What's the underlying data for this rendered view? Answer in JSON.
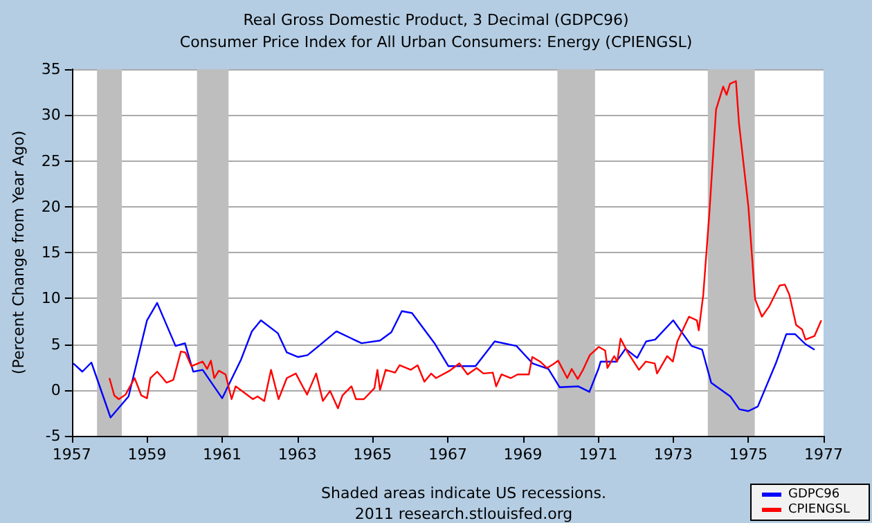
{
  "chart_data": {
    "type": "line",
    "title": "Real Gross Domestic Product, 3 Decimal (GDPC96)",
    "subtitle": "Consumer Price Index for All Urban Consumers: Energy (CPIENGSL)",
    "ylabel": "(Percent Change from Year Ago)",
    "annotations": [
      "Shaded areas indicate US recessions.",
      "2011 research.stlouisfed.org"
    ],
    "series": [
      {
        "name": "GDPC96",
        "color": "#0000ff",
        "x": [
          1957.04,
          1957.28,
          1957.52,
          1958.03,
          1958.51,
          1959.0,
          1959.27,
          1959.76,
          1960.01,
          1960.23,
          1960.48,
          1961.0,
          1961.5,
          1961.79,
          1962.03,
          1962.48,
          1962.72,
          1963.02,
          1963.27,
          1963.57,
          1964.04,
          1964.71,
          1965.2,
          1965.5,
          1965.78,
          1966.05,
          1966.65,
          1967.02,
          1967.74,
          1968.25,
          1968.83,
          1969.26,
          1969.68,
          1969.98,
          1970.47,
          1970.77,
          1971.01,
          1971.07,
          1971.49,
          1971.73,
          1972.04,
          1972.28,
          1972.52,
          1973.0,
          1973.49,
          1973.77,
          1974.01,
          1974.52,
          1974.76,
          1975.0,
          1975.25,
          1975.73,
          1976.01,
          1976.24,
          1976.52,
          1976.76
        ],
        "values": [
          2.9,
          2.0,
          3.0,
          -3.0,
          -0.7,
          7.6,
          9.5,
          4.8,
          5.1,
          2.0,
          2.2,
          -0.9,
          3.3,
          6.4,
          7.6,
          6.2,
          4.1,
          3.6,
          3.8,
          4.8,
          6.4,
          5.1,
          5.4,
          6.3,
          8.6,
          8.4,
          5.1,
          2.6,
          2.6,
          5.3,
          4.8,
          2.9,
          2.3,
          0.3,
          0.4,
          -0.2,
          2.3,
          3.1,
          3.1,
          4.5,
          3.5,
          5.3,
          5.5,
          7.6,
          4.8,
          4.4,
          0.8,
          -0.7,
          -2.1,
          -2.3,
          -1.8,
          2.9,
          6.1,
          6.1,
          5.0,
          4.4
        ]
      },
      {
        "name": "CPIENGSL",
        "color": "#ff0000",
        "x": [
          1958.0,
          1958.13,
          1958.25,
          1958.43,
          1958.67,
          1958.85,
          1959.0,
          1959.09,
          1959.27,
          1959.4,
          1959.52,
          1959.7,
          1959.9,
          1960.02,
          1960.18,
          1960.48,
          1960.6,
          1960.7,
          1960.79,
          1960.91,
          1961.09,
          1961.25,
          1961.36,
          1961.82,
          1961.94,
          1962.12,
          1962.3,
          1962.5,
          1962.72,
          1962.96,
          1963.14,
          1963.26,
          1963.5,
          1963.68,
          1963.87,
          1964.08,
          1964.2,
          1964.44,
          1964.56,
          1964.77,
          1965.05,
          1965.13,
          1965.2,
          1965.35,
          1965.6,
          1965.72,
          1966.02,
          1966.2,
          1966.38,
          1966.56,
          1966.69,
          1967.05,
          1967.31,
          1967.53,
          1967.77,
          1967.95,
          1968.2,
          1968.29,
          1968.43,
          1968.68,
          1968.86,
          1969.16,
          1969.25,
          1969.46,
          1969.64,
          1969.8,
          1969.94,
          1970.18,
          1970.3,
          1970.46,
          1970.6,
          1970.78,
          1971.02,
          1971.19,
          1971.25,
          1971.43,
          1971.51,
          1971.6,
          1971.79,
          1972.09,
          1972.27,
          1972.51,
          1972.57,
          1972.84,
          1972.99,
          1973.11,
          1973.42,
          1973.63,
          1973.68,
          1973.8,
          1973.96,
          1974.14,
          1974.33,
          1974.42,
          1974.51,
          1974.67,
          1974.75,
          1975.0,
          1975.18,
          1975.36,
          1975.55,
          1975.83,
          1975.97,
          1976.09,
          1976.27,
          1976.43,
          1976.52,
          1976.76,
          1976.94
        ],
        "values": [
          1.3,
          -0.6,
          -1.0,
          -0.5,
          1.3,
          -0.6,
          -0.9,
          1.3,
          2.0,
          1.4,
          0.8,
          1.1,
          4.2,
          4.1,
          2.6,
          3.1,
          2.3,
          3.2,
          1.3,
          2.1,
          1.7,
          -1.0,
          0.4,
          -1.0,
          -0.7,
          -1.2,
          2.2,
          -1.0,
          1.3,
          1.8,
          0.4,
          -0.5,
          1.8,
          -1.2,
          -0.1,
          -2.0,
          -0.6,
          0.4,
          -1.0,
          -1.0,
          0.2,
          2.2,
          0.0,
          2.2,
          1.9,
          2.7,
          2.2,
          2.7,
          0.9,
          1.8,
          1.3,
          2.1,
          2.9,
          1.7,
          2.4,
          1.8,
          1.9,
          0.4,
          1.7,
          1.3,
          1.7,
          1.7,
          3.6,
          3.1,
          2.4,
          2.8,
          3.2,
          1.3,
          2.3,
          1.2,
          2.2,
          3.8,
          4.7,
          4.3,
          2.4,
          3.7,
          3.1,
          5.6,
          4.1,
          2.2,
          3.1,
          2.9,
          1.8,
          3.7,
          3.1,
          5.3,
          8.0,
          7.6,
          6.5,
          10.4,
          19.2,
          30.6,
          33.1,
          32.2,
          33.4,
          33.7,
          29.1,
          20.0,
          9.9,
          8.0,
          9.1,
          11.4,
          11.5,
          10.4,
          7.1,
          6.6,
          5.5,
          5.9,
          7.6
        ]
      }
    ],
    "bands": [
      {
        "axis": "x",
        "from": 1957.67,
        "to": 1958.33,
        "color": "#bebebe"
      },
      {
        "axis": "x",
        "from": 1960.33,
        "to": 1961.17,
        "color": "#bebebe"
      },
      {
        "axis": "x",
        "from": 1969.92,
        "to": 1970.92,
        "color": "#bebebe"
      },
      {
        "axis": "x",
        "from": 1973.92,
        "to": 1975.17,
        "color": "#bebebe"
      }
    ],
    "xlim": [
      1957,
      1977
    ],
    "xticks": [
      1957,
      1959,
      1961,
      1963,
      1965,
      1967,
      1969,
      1971,
      1973,
      1975,
      1977
    ],
    "ylim": [
      -5,
      35
    ],
    "yticks": [
      -5,
      0,
      5,
      10,
      15,
      20,
      25,
      30,
      35
    ],
    "grid": "y",
    "legend": "bottom right",
    "marker": "none",
    "line_style": "solid"
  }
}
